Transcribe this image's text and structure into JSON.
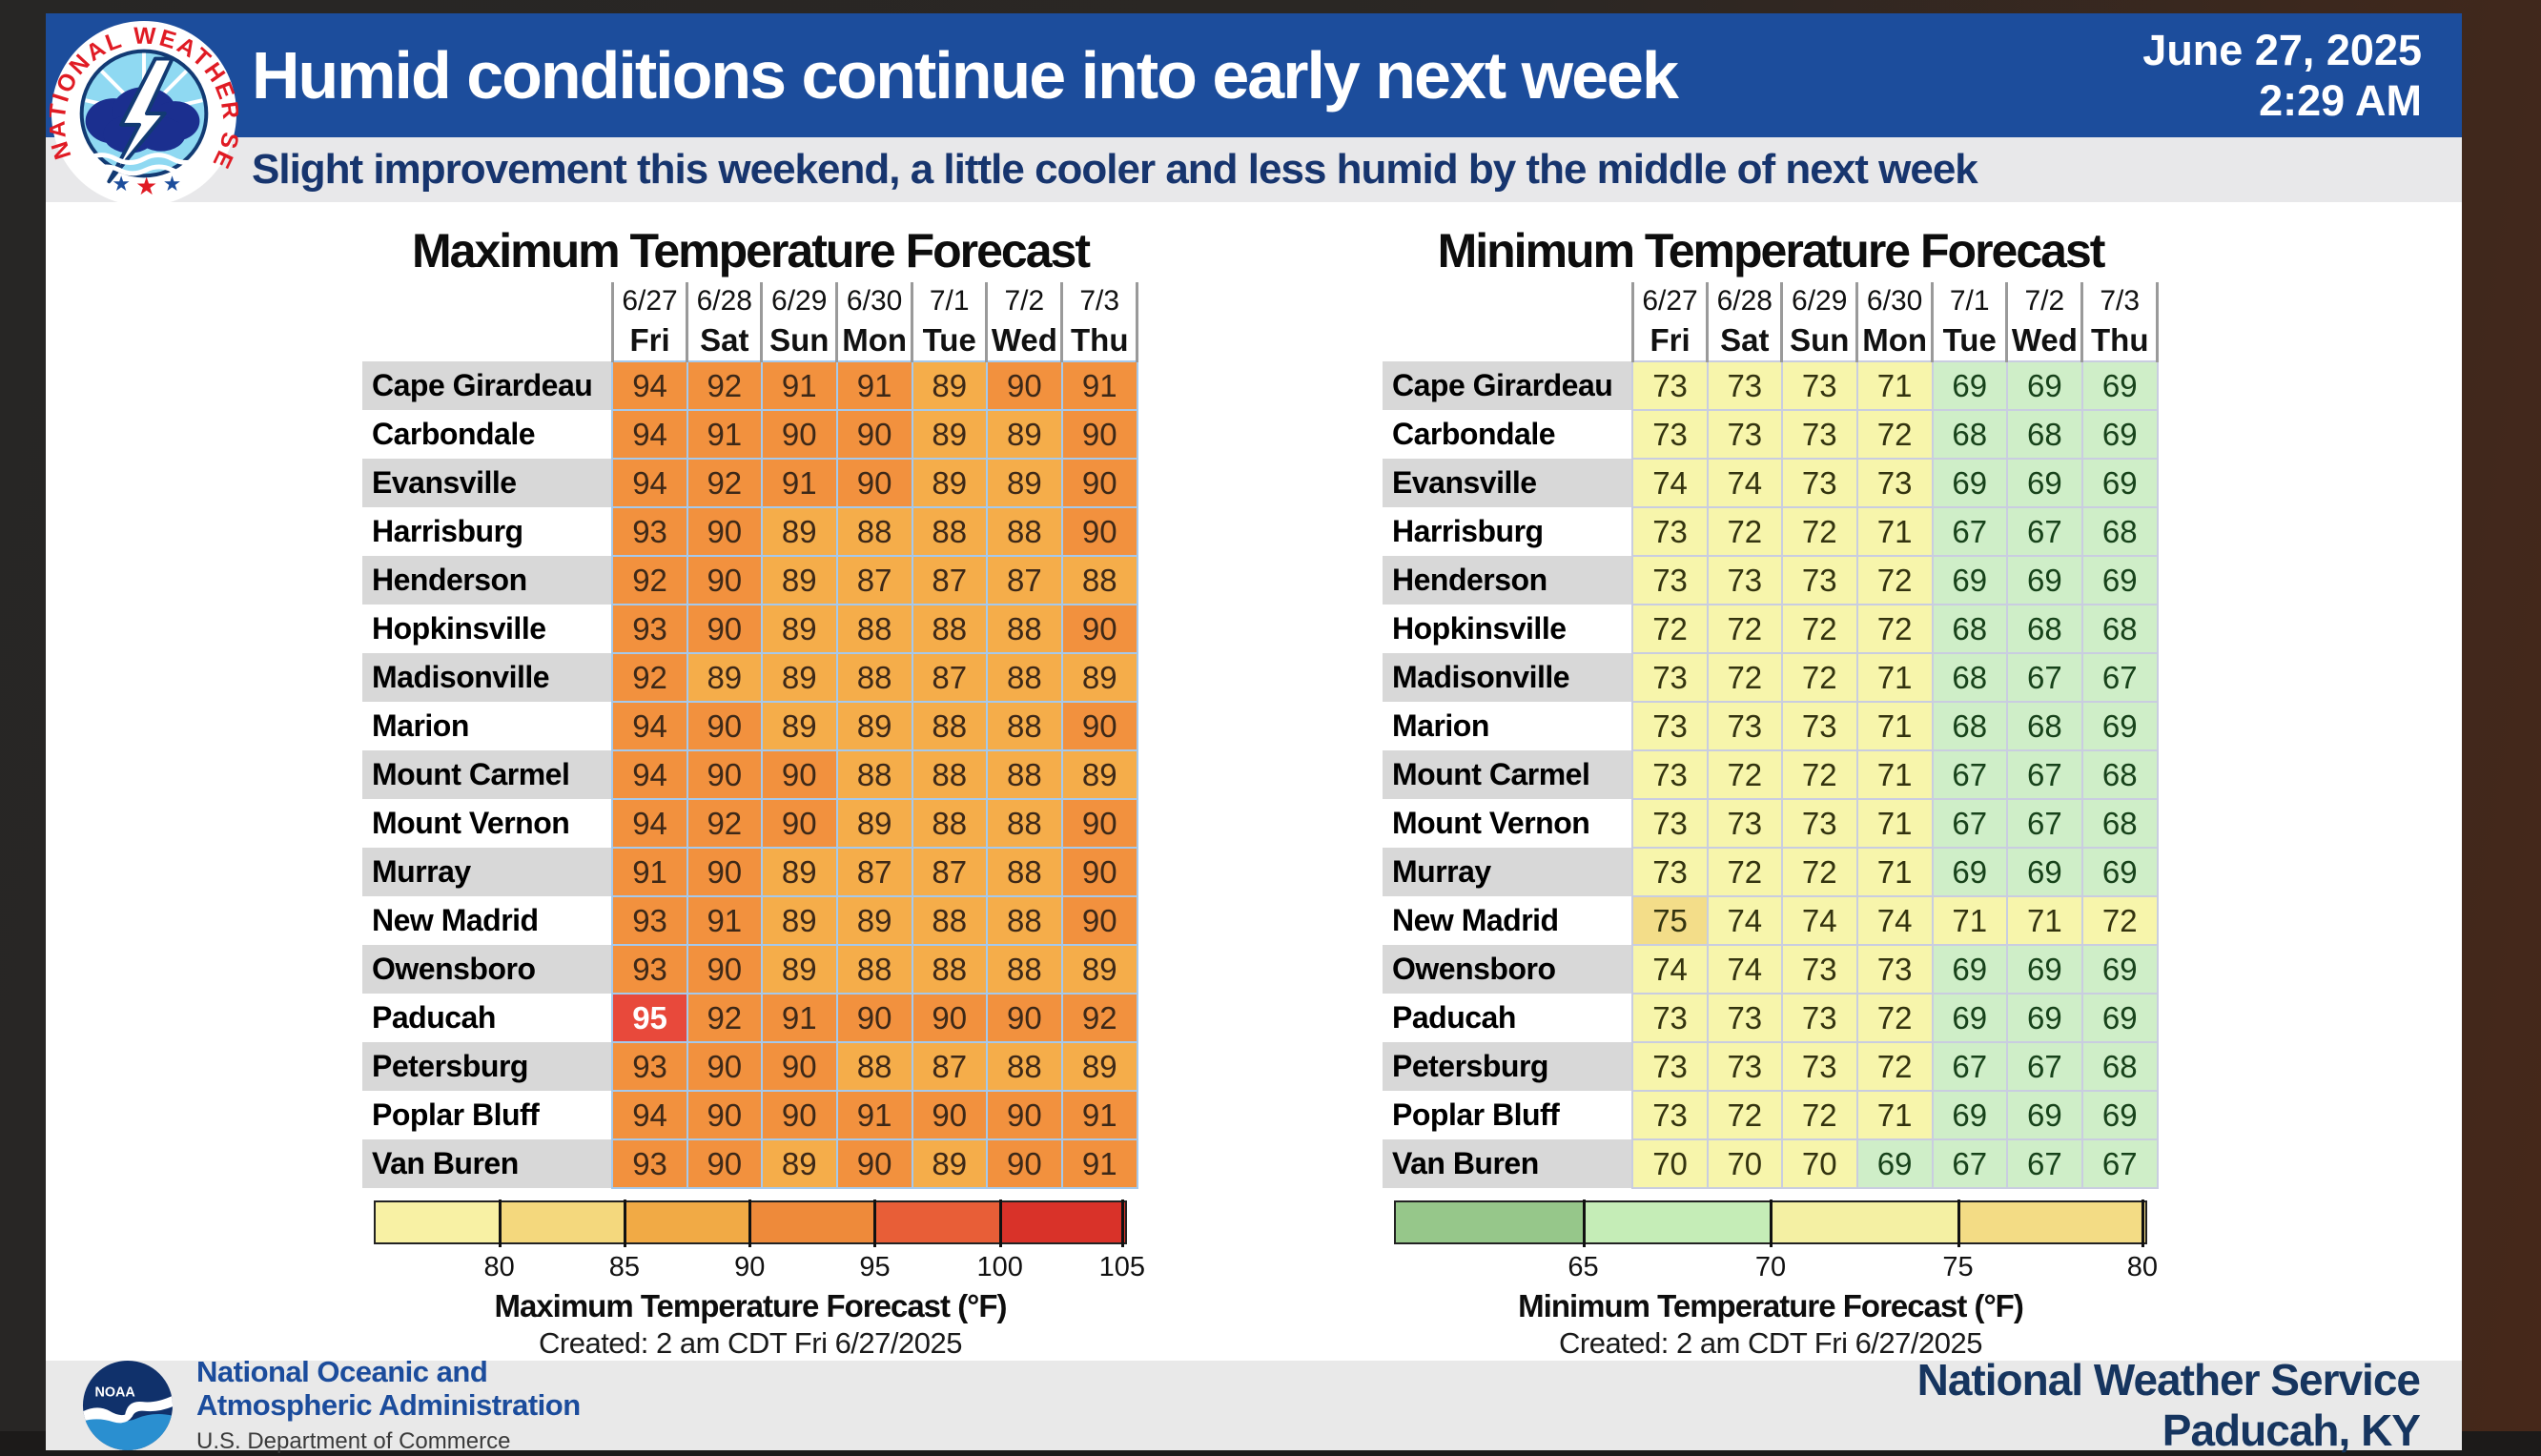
{
  "header": {
    "title": "Humid conditions continue into early next week",
    "date": "June 27, 2025",
    "time": "2:29 AM",
    "subtitle": "Slight improvement this weekend, a little cooler and less humid by the middle of next week"
  },
  "footer": {
    "noaa_text": "NOAA",
    "agency_line1": "National Oceanic and",
    "agency_line2": "Atmospheric Administration",
    "dept": "U.S. Department of Commerce",
    "office_line1": "National Weather Service",
    "office_line2": "Paducah, KY"
  },
  "colors": {
    "header_blue": "#1c4d9c",
    "subtitle_bg": "#e8e8ea",
    "subtitle_text": "#17356e",
    "footer_bg": "#e9e9e9",
    "office_navy": "#16355f",
    "row_stripe": "#d8d8d8",
    "max_grid": "#a5c9ec",
    "min_grid": "#c9cde0"
  },
  "chart_data": [
    {
      "type": "heatmap",
      "title": "Maximum Temperature Forecast",
      "legend_label": "Maximum Temperature Forecast (°F)",
      "created": "Created: 2 am CDT Fri 6/27/2025",
      "dates": [
        "6/27",
        "6/28",
        "6/29",
        "6/30",
        "7/1",
        "7/2",
        "7/3"
      ],
      "days": [
        "Fri",
        "Sat",
        "Sun",
        "Mon",
        "Tue",
        "Wed",
        "Thu"
      ],
      "cities": [
        "Cape Girardeau",
        "Carbondale",
        "Evansville",
        "Harrisburg",
        "Henderson",
        "Hopkinsville",
        "Madisonville",
        "Marion",
        "Mount Carmel",
        "Mount Vernon",
        "Murray",
        "New Madrid",
        "Owensboro",
        "Paducah",
        "Petersburg",
        "Poplar Bluff",
        "Van Buren"
      ],
      "values": [
        [
          94,
          92,
          91,
          91,
          89,
          90,
          91
        ],
        [
          94,
          91,
          90,
          90,
          89,
          89,
          90
        ],
        [
          94,
          92,
          91,
          90,
          89,
          89,
          90
        ],
        [
          93,
          90,
          89,
          88,
          88,
          88,
          90
        ],
        [
          92,
          90,
          89,
          87,
          87,
          87,
          88
        ],
        [
          93,
          90,
          89,
          88,
          88,
          88,
          90
        ],
        [
          92,
          89,
          89,
          88,
          87,
          88,
          89
        ],
        [
          94,
          90,
          89,
          89,
          88,
          88,
          90
        ],
        [
          94,
          90,
          90,
          88,
          88,
          88,
          89
        ],
        [
          94,
          92,
          90,
          89,
          88,
          88,
          90
        ],
        [
          91,
          90,
          89,
          87,
          87,
          88,
          90
        ],
        [
          93,
          91,
          89,
          89,
          88,
          88,
          90
        ],
        [
          93,
          90,
          89,
          88,
          88,
          88,
          89
        ],
        [
          95,
          92,
          91,
          90,
          90,
          90,
          92
        ],
        [
          93,
          90,
          90,
          88,
          87,
          88,
          89
        ],
        [
          94,
          90,
          90,
          91,
          90,
          90,
          91
        ],
        [
          93,
          90,
          89,
          90,
          89,
          90,
          91
        ]
      ],
      "cell_bins": [
        {
          "min": 95,
          "bg": "#e8493b",
          "fg": "#ffffff",
          "bold": true
        },
        {
          "min": 90,
          "bg": "#f2913e",
          "fg": "#3d2817"
        },
        {
          "min": 0,
          "bg": "#f5ad4a",
          "fg": "#3d2817"
        }
      ],
      "scale": {
        "range_labels": [
          "80",
          "85",
          "90",
          "95",
          "100",
          "105"
        ],
        "segments": [
          {
            "from": 0,
            "to": 16.5,
            "color": "#f8f1a4"
          },
          {
            "from": 16.5,
            "to": 33.2,
            "color": "#f4d87d"
          },
          {
            "from": 33.2,
            "to": 49.9,
            "color": "#f1aa45"
          },
          {
            "from": 49.9,
            "to": 66.6,
            "color": "#ee8a3a"
          },
          {
            "from": 66.6,
            "to": 83.3,
            "color": "#e85e37"
          },
          {
            "from": 83.3,
            "to": 100,
            "color": "#d93229"
          }
        ],
        "ticks": [
          {
            "label": "80",
            "pos": 16.5
          },
          {
            "label": "85",
            "pos": 33.2
          },
          {
            "label": "90",
            "pos": 49.9
          },
          {
            "label": "95",
            "pos": 66.6
          },
          {
            "label": "100",
            "pos": 83.3
          },
          {
            "label": "105",
            "pos": 99.6
          }
        ]
      }
    },
    {
      "type": "heatmap",
      "title": "Minimum Temperature Forecast",
      "legend_label": "Minimum Temperature Forecast (°F)",
      "created": "Created: 2 am CDT Fri 6/27/2025",
      "dates": [
        "6/27",
        "6/28",
        "6/29",
        "6/30",
        "7/1",
        "7/2",
        "7/3"
      ],
      "days": [
        "Fri",
        "Sat",
        "Sun",
        "Mon",
        "Tue",
        "Wed",
        "Thu"
      ],
      "cities": [
        "Cape Girardeau",
        "Carbondale",
        "Evansville",
        "Harrisburg",
        "Henderson",
        "Hopkinsville",
        "Madisonville",
        "Marion",
        "Mount Carmel",
        "Mount Vernon",
        "Murray",
        "New Madrid",
        "Owensboro",
        "Paducah",
        "Petersburg",
        "Poplar Bluff",
        "Van Buren"
      ],
      "values": [
        [
          73,
          73,
          73,
          71,
          69,
          69,
          69
        ],
        [
          73,
          73,
          73,
          72,
          68,
          68,
          69
        ],
        [
          74,
          74,
          73,
          73,
          69,
          69,
          69
        ],
        [
          73,
          72,
          72,
          71,
          67,
          67,
          68
        ],
        [
          73,
          73,
          73,
          72,
          69,
          69,
          69
        ],
        [
          72,
          72,
          72,
          72,
          68,
          68,
          68
        ],
        [
          73,
          72,
          72,
          71,
          68,
          67,
          67
        ],
        [
          73,
          73,
          73,
          71,
          68,
          68,
          69
        ],
        [
          73,
          72,
          72,
          71,
          67,
          67,
          68
        ],
        [
          73,
          73,
          73,
          71,
          67,
          67,
          68
        ],
        [
          73,
          72,
          72,
          71,
          69,
          69,
          69
        ],
        [
          75,
          74,
          74,
          74,
          71,
          71,
          72
        ],
        [
          74,
          74,
          73,
          73,
          69,
          69,
          69
        ],
        [
          73,
          73,
          73,
          72,
          69,
          69,
          69
        ],
        [
          73,
          73,
          73,
          72,
          67,
          67,
          68
        ],
        [
          73,
          72,
          72,
          71,
          69,
          69,
          69
        ],
        [
          70,
          70,
          70,
          69,
          67,
          67,
          67
        ]
      ],
      "cell_bins": [
        {
          "min": 75,
          "bg": "#f3dd89",
          "fg": "#33330f"
        },
        {
          "min": 70,
          "bg": "#f7f5ab",
          "fg": "#33330f"
        },
        {
          "min": 0,
          "bg": "#cfeec8",
          "fg": "#17421a"
        }
      ],
      "scale": {
        "range_labels": [
          "65",
          "70",
          "75",
          "80"
        ],
        "segments": [
          {
            "from": 0,
            "to": 25,
            "color": "#96c78a"
          },
          {
            "from": 25,
            "to": 50,
            "color": "#c5edb7"
          },
          {
            "from": 50,
            "to": 75,
            "color": "#f4f0a3"
          },
          {
            "from": 75,
            "to": 100,
            "color": "#f3dc85"
          }
        ],
        "ticks": [
          {
            "label": "65",
            "pos": 25
          },
          {
            "label": "70",
            "pos": 50
          },
          {
            "label": "75",
            "pos": 75
          },
          {
            "label": "80",
            "pos": 99.6
          }
        ]
      }
    }
  ]
}
